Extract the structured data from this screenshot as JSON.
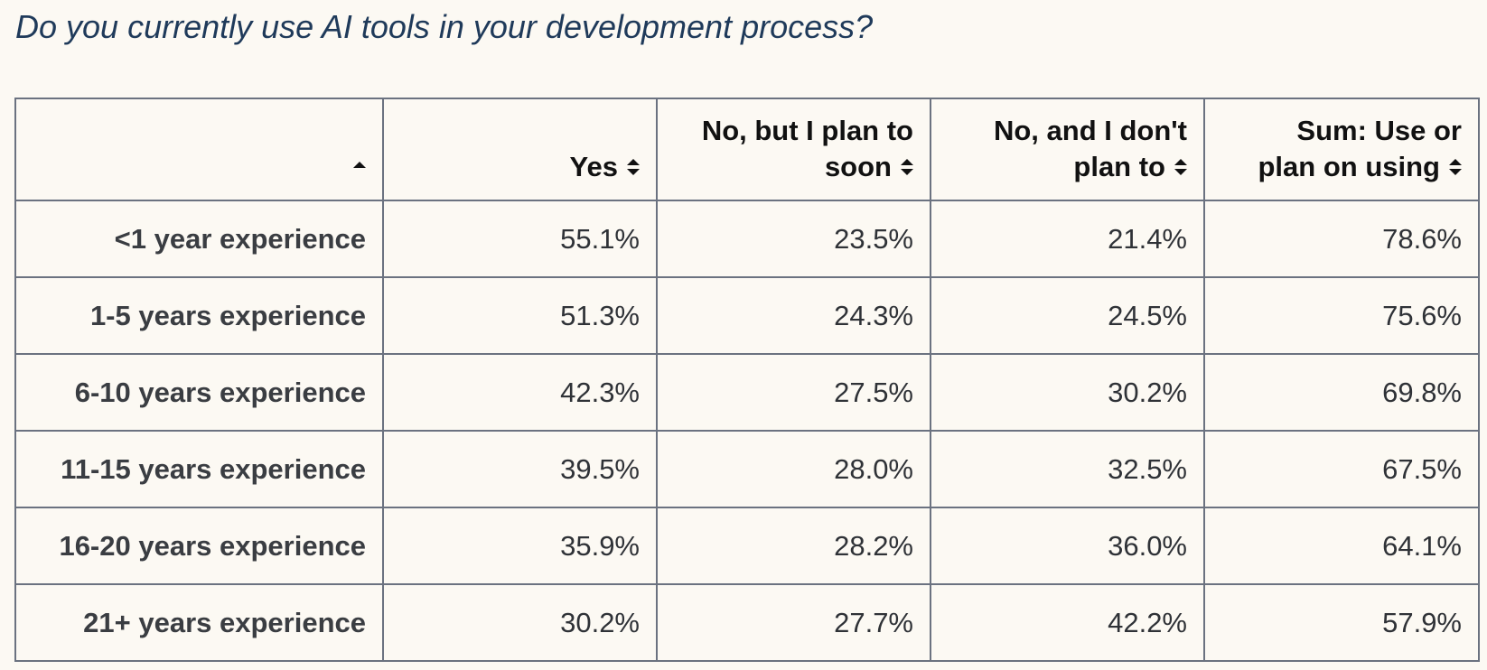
{
  "title": "Do you currently use AI tools in your development process?",
  "icons": {
    "header_sort_active": "sort-ascending-icon",
    "header_sort": "sort-both-icon"
  },
  "colors": {
    "background": "#fcf9f3",
    "title": "#1f3a5a",
    "border": "#6b7280",
    "text": "#2f3237"
  },
  "chart_data": {
    "type": "table",
    "title": "Do you currently use AI tools in your development process?",
    "columns": [
      "",
      "Yes",
      "No, but I plan to soon",
      "No, and I don't plan to",
      "Sum: Use or plan on using"
    ],
    "header_lines": [
      [
        ""
      ],
      [
        "Yes"
      ],
      [
        "No, but I plan to",
        "soon"
      ],
      [
        "No, and I don't",
        "plan to"
      ],
      [
        "Sum: Use or",
        "plan on using"
      ]
    ],
    "rows": [
      {
        "label": "<1 year experience",
        "values": [
          "55.1%",
          "23.5%",
          "21.4%",
          "78.6%"
        ]
      },
      {
        "label": "1-5 years experience",
        "values": [
          "51.3%",
          "24.3%",
          "24.5%",
          "75.6%"
        ]
      },
      {
        "label": "6-10 years experience",
        "values": [
          "42.3%",
          "27.5%",
          "30.2%",
          "69.8%"
        ]
      },
      {
        "label": "11-15 years experience",
        "values": [
          "39.5%",
          "28.0%",
          "32.5%",
          "67.5%"
        ]
      },
      {
        "label": "16-20 years experience",
        "values": [
          "35.9%",
          "28.2%",
          "36.0%",
          "64.1%"
        ]
      },
      {
        "label": "21+ years experience",
        "values": [
          "30.2%",
          "27.7%",
          "42.2%",
          "57.9%"
        ]
      }
    ],
    "sort": {
      "column_index": 0,
      "direction": "ascending"
    }
  }
}
